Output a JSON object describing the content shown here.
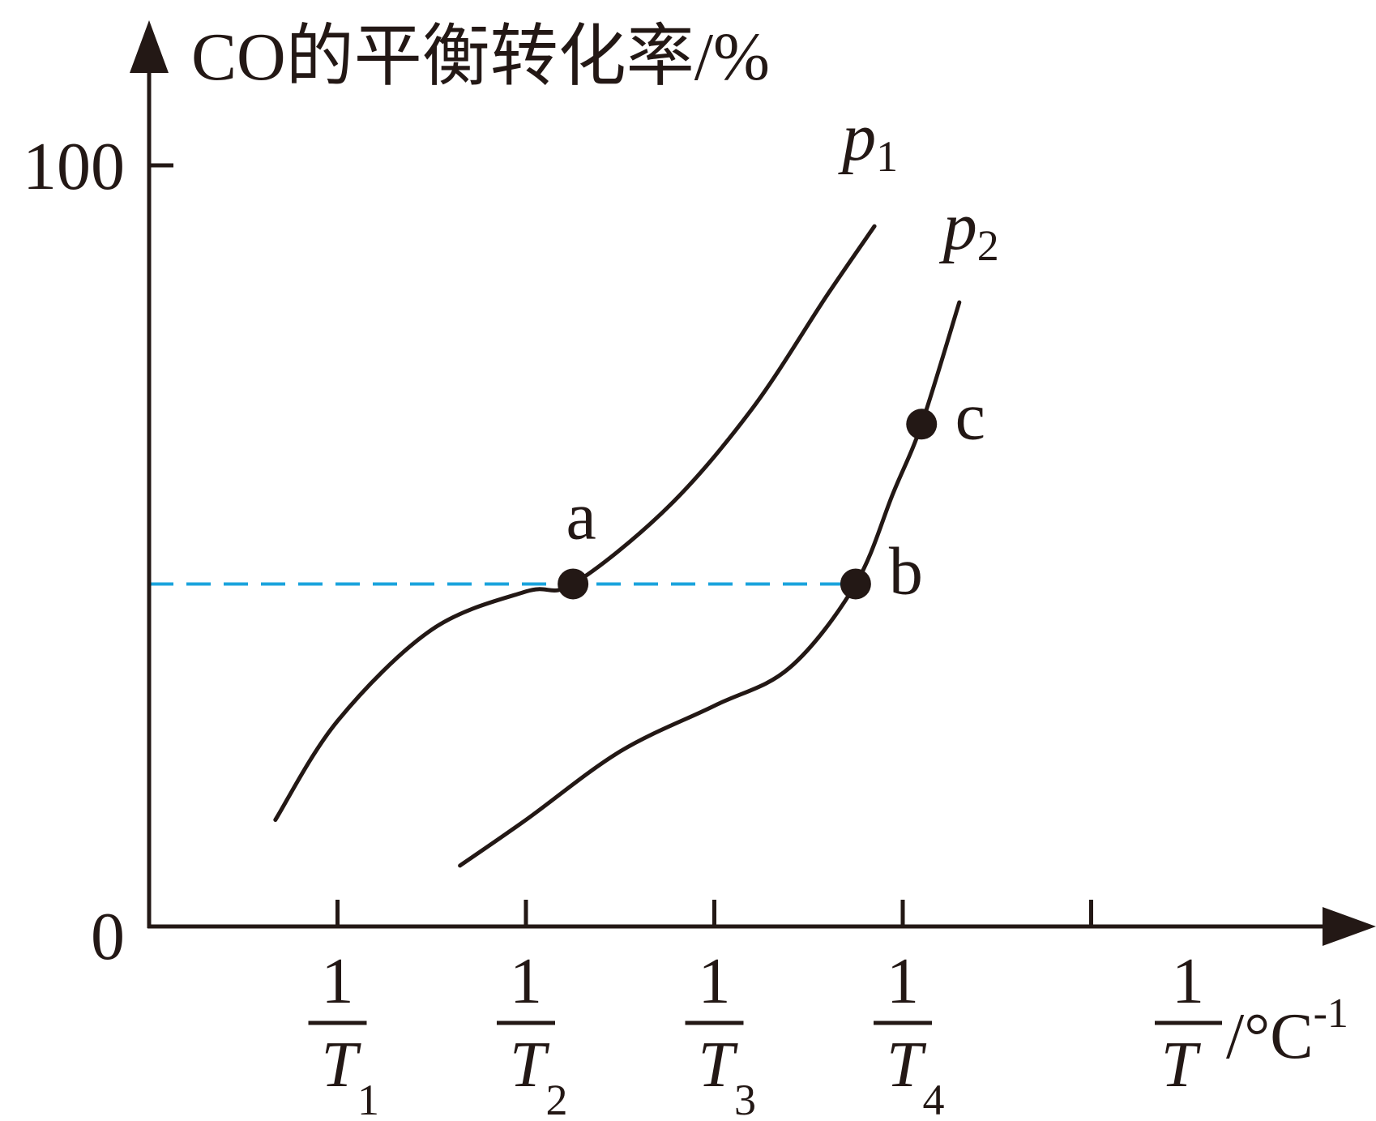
{
  "chart_data": {
    "type": "line",
    "title": "",
    "ylabel": "CO的平衡转化率/%",
    "xlabel": {
      "numerator": "1",
      "denominator": "T",
      "unit": "/°C",
      "unit_sup": "-1"
    },
    "ylim": [
      0,
      100
    ],
    "yticks": [
      {
        "value": 0,
        "label": "0"
      },
      {
        "value": 100,
        "label": "100"
      }
    ],
    "xlim": [
      0,
      6.3
    ],
    "xticks": [
      {
        "x": 1,
        "numerator": "1",
        "base": "T",
        "sub": "1"
      },
      {
        "x": 2,
        "numerator": "1",
        "base": "T",
        "sub": "2"
      },
      {
        "x": 3,
        "numerator": "1",
        "base": "T",
        "sub": "3"
      },
      {
        "x": 4,
        "numerator": "1",
        "base": "T",
        "sub": "4"
      },
      {
        "x": 5,
        "numerator": "",
        "base": "",
        "sub": ""
      }
    ],
    "series": [
      {
        "name": "p",
        "name_sub": "1",
        "color": "#231815",
        "points": [
          [
            0.67,
            14
          ],
          [
            1.0,
            27
          ],
          [
            1.5,
            39
          ],
          [
            2.0,
            44
          ],
          [
            2.25,
            45
          ],
          [
            2.75,
            55
          ],
          [
            3.2,
            68
          ],
          [
            3.6,
            83
          ],
          [
            3.85,
            92
          ]
        ]
      },
      {
        "name": "p",
        "name_sub": "2",
        "color": "#231815",
        "points": [
          [
            1.65,
            8
          ],
          [
            2.0,
            14
          ],
          [
            2.5,
            23
          ],
          [
            3.0,
            29
          ],
          [
            3.4,
            34
          ],
          [
            3.75,
            45
          ],
          [
            3.95,
            57
          ],
          [
            4.1,
            66
          ],
          [
            4.3,
            82
          ]
        ]
      }
    ],
    "marked_points": [
      {
        "label": "a",
        "x": 2.25,
        "y": 45
      },
      {
        "label": "b",
        "x": 3.75,
        "y": 45
      },
      {
        "label": "c",
        "x": 4.1,
        "y": 66
      }
    ],
    "guide_line": {
      "y": 45,
      "x_from": 0,
      "x_to": 3.75,
      "color": "#1aa3dc",
      "style": "dashed"
    },
    "grid": false,
    "legend": "none"
  }
}
